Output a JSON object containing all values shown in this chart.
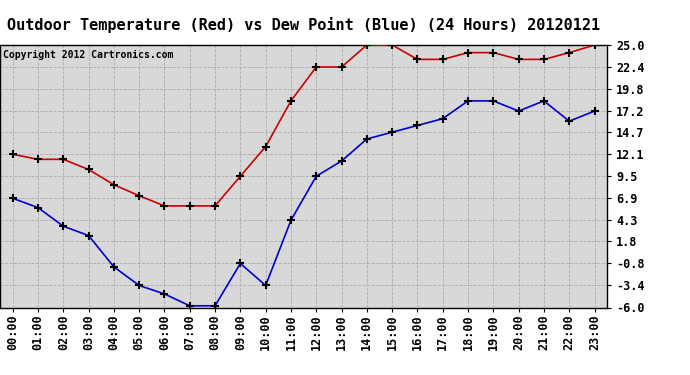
{
  "title": "Outdoor Temperature (Red) vs Dew Point (Blue) (24 Hours) 20120121",
  "copyright": "Copyright 2012 Cartronics.com",
  "x_labels": [
    "00:00",
    "01:00",
    "02:00",
    "03:00",
    "04:00",
    "05:00",
    "06:00",
    "07:00",
    "08:00",
    "09:00",
    "10:00",
    "11:00",
    "12:00",
    "13:00",
    "14:00",
    "15:00",
    "16:00",
    "17:00",
    "18:00",
    "19:00",
    "20:00",
    "21:00",
    "22:00",
    "23:00"
  ],
  "red_data": [
    12.1,
    11.5,
    11.5,
    10.3,
    8.5,
    7.2,
    6.0,
    6.0,
    6.0,
    9.5,
    13.0,
    18.4,
    22.4,
    22.4,
    25.0,
    25.0,
    23.3,
    23.3,
    24.1,
    24.1,
    23.3,
    23.3,
    24.1,
    25.0
  ],
  "blue_data": [
    6.9,
    5.8,
    3.6,
    2.5,
    -1.2,
    -3.4,
    -4.4,
    -5.8,
    -5.8,
    -0.8,
    -3.4,
    4.3,
    9.5,
    11.3,
    13.9,
    14.7,
    15.5,
    16.3,
    18.4,
    18.4,
    17.2,
    18.4,
    16.0,
    17.2
  ],
  "ylim": [
    -6.0,
    25.0
  ],
  "yticks": [
    -6.0,
    -3.4,
    -0.8,
    1.8,
    4.3,
    6.9,
    9.5,
    12.1,
    14.7,
    17.2,
    19.8,
    22.4,
    25.0
  ],
  "red_color": "#cc0000",
  "blue_color": "#0000cc",
  "grid_color": "#aaaaaa",
  "plot_bg_color": "#d8d8d8",
  "fig_bg_color": "#ffffff",
  "title_bg_color": "#ffffff",
  "title_fontsize": 11,
  "copyright_fontsize": 7,
  "tick_fontsize": 8.5,
  "marker_color": "#000000"
}
